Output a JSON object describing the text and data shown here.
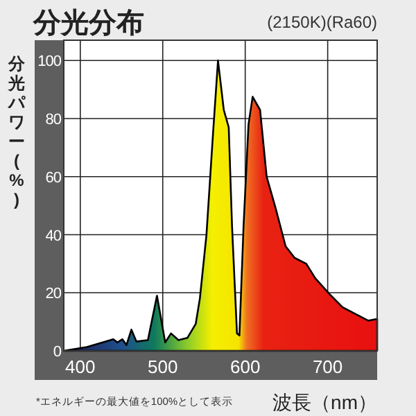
{
  "chart_data": {
    "type": "area",
    "title": "分光分布",
    "subtitle": "(2150K)(Ra60)",
    "xlabel": "波長（nm）",
    "ylabel": "分光パワー(%)",
    "annotations": [
      "*エネルギーの最大値を100%として表示"
    ],
    "x": [
      380,
      408,
      431,
      440,
      445,
      451,
      456,
      462,
      468,
      482,
      493,
      500,
      503,
      510,
      519,
      530,
      540,
      545,
      553,
      561,
      567,
      574,
      580,
      584,
      590,
      593,
      598,
      604,
      609,
      618,
      626,
      637,
      649,
      660,
      674,
      685,
      702,
      718,
      735,
      749,
      760
    ],
    "series": [
      {
        "color": "#000000",
        "values": [
          0,
          1.3,
          3.2,
          4,
          2.9,
          4,
          2,
          7.3,
          3.2,
          3.7,
          19,
          7.7,
          2.9,
          6,
          3.7,
          4.5,
          9.3,
          18,
          40,
          75,
          100,
          83,
          77,
          43,
          6,
          5.3,
          43,
          78,
          87.5,
          83,
          60,
          49,
          36,
          32,
          30,
          25,
          19.6,
          15,
          12.5,
          10.4,
          11
        ]
      }
    ],
    "xlim": [
      380,
      760
    ],
    "ylim": [
      0,
      107
    ],
    "xticks": [
      400,
      500,
      600,
      700
    ],
    "yticks": [
      0,
      20,
      40,
      60,
      80,
      100
    ],
    "grid": true
  }
}
